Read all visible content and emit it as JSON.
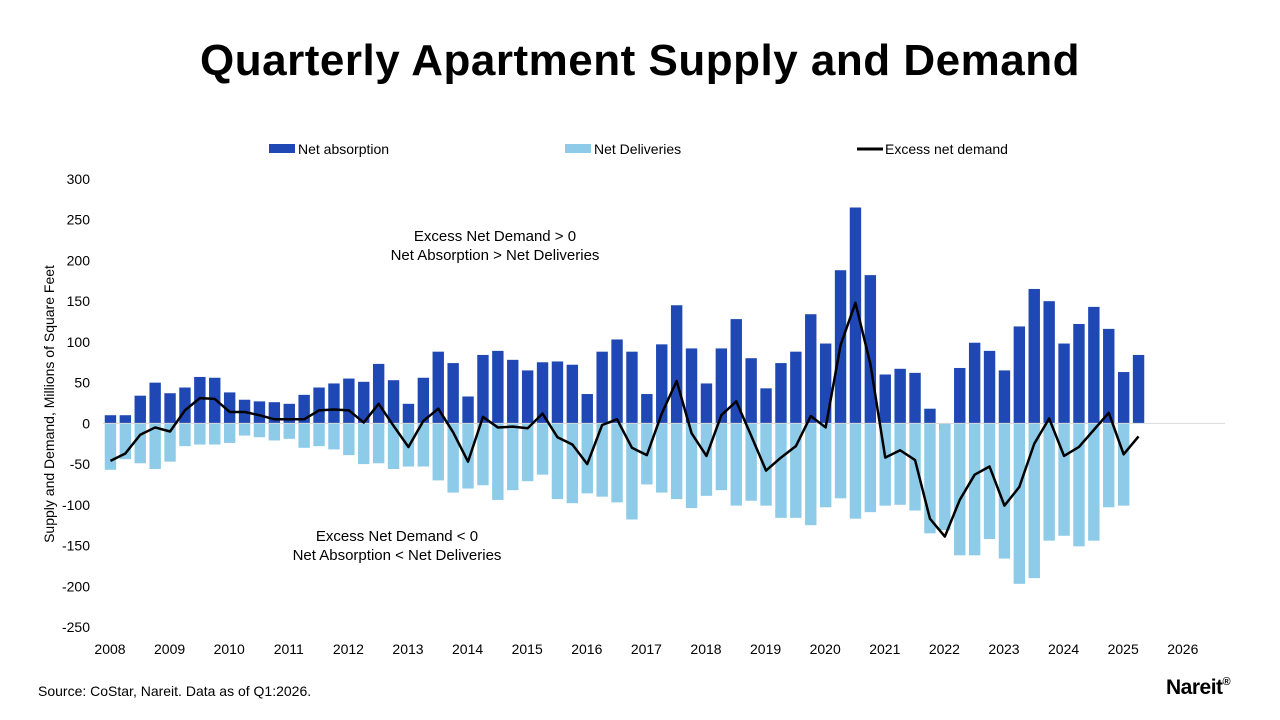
{
  "title": "Quarterly Apartment Supply and Demand",
  "source": "Source: CoStar, Nareit. Data as of Q1:2026.",
  "logo": "Nareit",
  "logo_mark": "®",
  "colors": {
    "absorption": "#1f48b4",
    "deliveries": "#8dcbe9",
    "excess": "#000000"
  },
  "chart_data": {
    "type": "bar",
    "ylabel": "Supply and Demand, Millions of Square Feet",
    "ylim": [
      -250,
      300
    ],
    "yticks": [
      300,
      250,
      200,
      150,
      100,
      50,
      0,
      -50,
      -100,
      -150,
      -200,
      -250
    ],
    "year_labels": [
      "2008",
      "2009",
      "2010",
      "2011",
      "2012",
      "2013",
      "2014",
      "2015",
      "2016",
      "2017",
      "2018",
      "2019",
      "2020",
      "2021",
      "2022",
      "2023",
      "2024",
      "2025",
      "2026"
    ],
    "quarters": [
      "2008Q1",
      "2008Q2",
      "2008Q3",
      "2008Q4",
      "2009Q1",
      "2009Q2",
      "2009Q3",
      "2009Q4",
      "2010Q1",
      "2010Q2",
      "2010Q3",
      "2010Q4",
      "2011Q1",
      "2011Q2",
      "2011Q3",
      "2011Q4",
      "2012Q1",
      "2012Q2",
      "2012Q3",
      "2012Q4",
      "2013Q1",
      "2013Q2",
      "2013Q3",
      "2013Q4",
      "2014Q1",
      "2014Q2",
      "2014Q3",
      "2014Q4",
      "2015Q1",
      "2015Q2",
      "2015Q3",
      "2015Q4",
      "2016Q1",
      "2016Q2",
      "2016Q3",
      "2016Q4",
      "2017Q1",
      "2017Q2",
      "2017Q3",
      "2017Q4",
      "2018Q1",
      "2018Q2",
      "2018Q3",
      "2018Q4",
      "2019Q1",
      "2019Q2",
      "2019Q3",
      "2019Q4",
      "2020Q1",
      "2020Q2",
      "2020Q3",
      "2020Q4",
      "2021Q1",
      "2021Q2",
      "2021Q3",
      "2021Q4",
      "2022Q1",
      "2022Q2",
      "2022Q3",
      "2022Q4",
      "2023Q1",
      "2023Q2",
      "2023Q3",
      "2023Q4",
      "2024Q1",
      "2024Q2",
      "2024Q3",
      "2024Q4",
      "2025Q1",
      "2025Q2",
      "2025Q3",
      "2025Q4",
      "2026Q1"
    ],
    "legend_position": "top",
    "grid": false,
    "series": [
      {
        "name": "Net absorption",
        "type": "bar",
        "values": [
          10,
          10,
          34,
          50,
          37,
          44,
          57,
          56,
          38,
          29,
          27,
          26,
          24,
          35,
          44,
          49,
          55,
          51,
          73,
          53,
          24,
          56,
          88,
          74,
          33,
          84,
          89,
          78,
          65,
          75,
          76,
          72,
          36,
          88,
          103,
          88,
          36,
          97,
          145,
          92,
          49,
          92,
          128,
          80,
          43,
          74,
          88,
          134,
          98,
          188,
          265,
          182,
          60,
          67,
          62,
          18,
          -8,
          68,
          99,
          89,
          65,
          119,
          165,
          150,
          98,
          122,
          143,
          116,
          63,
          84,
          0,
          0,
          0
        ]
      },
      {
        "name": "Net Deliveries",
        "type": "bar",
        "values": [
          -57,
          -44,
          -49,
          -56,
          -47,
          -28,
          -26,
          -26,
          -24,
          -15,
          -17,
          -21,
          -19,
          -30,
          -28,
          -32,
          -39,
          -50,
          -49,
          -56,
          -53,
          -53,
          -70,
          -85,
          -80,
          -76,
          -94,
          -82,
          -71,
          -63,
          -93,
          -98,
          -86,
          -90,
          -97,
          -118,
          -75,
          -85,
          -93,
          -104,
          -89,
          -82,
          -101,
          -95,
          -101,
          -116,
          -116,
          -125,
          -103,
          -92,
          -117,
          -109,
          -101,
          -100,
          -107,
          -135,
          -131,
          -162,
          -162,
          -142,
          -166,
          -197,
          -190,
          -144,
          -138,
          -151,
          -144,
          -103,
          -101,
          0,
          0,
          0,
          0
        ]
      },
      {
        "name": "Excess net demand",
        "type": "line",
        "values": [
          -46,
          -37,
          -14,
          -5,
          -10,
          16,
          31,
          30,
          14,
          14,
          10,
          5,
          5,
          5,
          16,
          17,
          16,
          1,
          24,
          -3,
          -29,
          3,
          18,
          -11,
          -47,
          8,
          -5,
          -4,
          -6,
          12,
          -17,
          -26,
          -50,
          -2,
          5,
          -30,
          -39,
          12,
          52,
          -12,
          -40,
          10,
          27,
          -15,
          -58,
          -42,
          -28,
          9,
          -5,
          96,
          148,
          73,
          -42,
          -33,
          -45,
          -117,
          -139,
          -94,
          -63,
          -53,
          -101,
          -78,
          -25,
          6,
          -40,
          -29,
          -8,
          13,
          -38,
          -16,
          0,
          0,
          0
        ]
      }
    ],
    "annotations": [
      {
        "lines": [
          "Excess Net Demand > 0",
          "Net Absorption > Net Deliveries"
        ],
        "position": "upper-left"
      },
      {
        "lines": [
          "Excess Net Demand < 0",
          "Net Absorption < Net Deliveries"
        ],
        "position": "lower-left"
      }
    ]
  }
}
